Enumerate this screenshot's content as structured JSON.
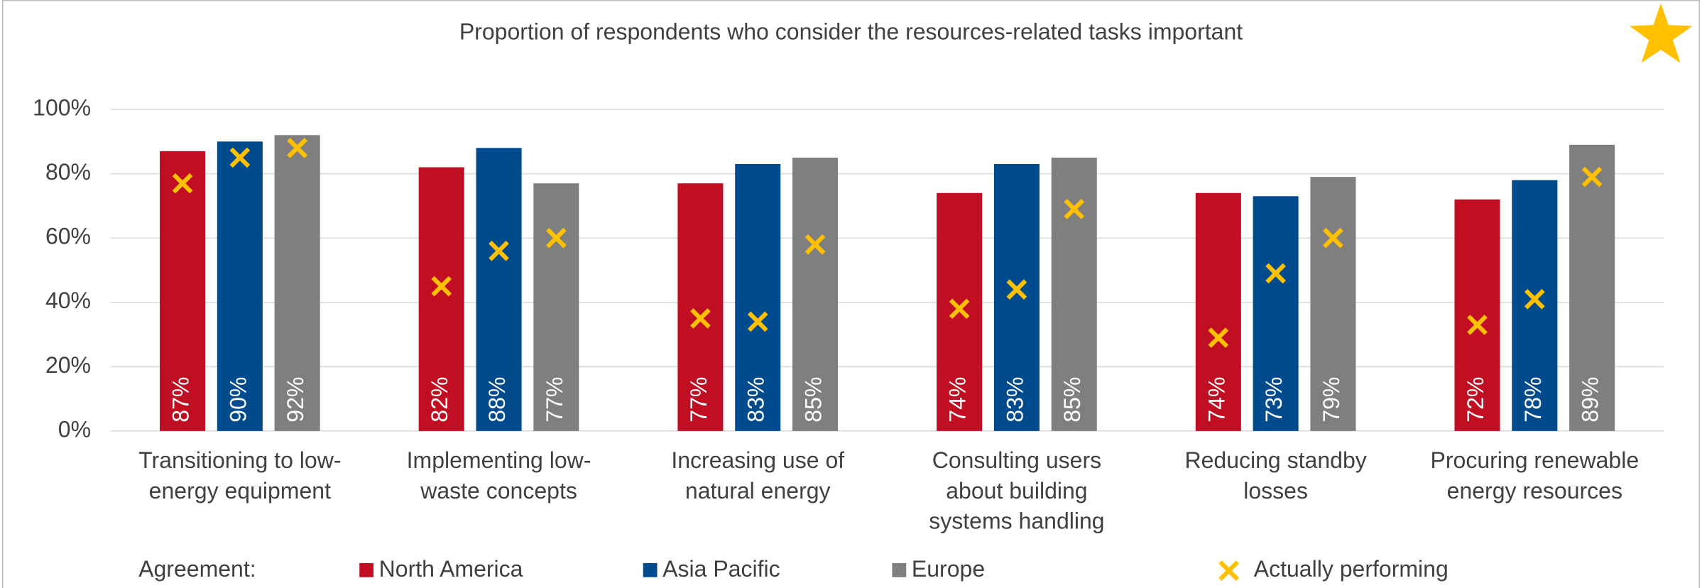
{
  "chart_data": {
    "type": "bar",
    "title": "Proportion of respondents who consider the resources-related tasks important",
    "categories": [
      [
        "Transitioning to low-",
        "energy equipment"
      ],
      [
        "Implementing low-",
        "waste concepts"
      ],
      [
        "Increasing use of",
        "natural energy"
      ],
      [
        "Consulting users",
        "about building",
        "systems handling"
      ],
      [
        "Reducing standby",
        "losses"
      ],
      [
        "Procuring renewable",
        "energy resources"
      ]
    ],
    "legend_title": "Agreement:",
    "series": [
      {
        "name": "North America",
        "color": "#c00f23",
        "values": [
          87,
          82,
          77,
          74,
          74,
          72
        ],
        "value_labels": [
          "87%",
          "82%",
          "77%",
          "74%",
          "74%",
          "72%"
        ],
        "performing": [
          77,
          45,
          35,
          38,
          29,
          33
        ]
      },
      {
        "name": "Asia Pacific",
        "color": "#004b8d",
        "values": [
          90,
          88,
          83,
          83,
          73,
          78
        ],
        "value_labels": [
          "90%",
          "88%",
          "83%",
          "83%",
          "73%",
          "78%"
        ],
        "performing": [
          85,
          56,
          34,
          44,
          49,
          41
        ]
      },
      {
        "name": "Europe",
        "color": "#7f7f7f",
        "values": [
          92,
          77,
          85,
          85,
          79,
          89
        ],
        "value_labels": [
          "92%",
          "77%",
          "85%",
          "85%",
          "79%",
          "89%"
        ],
        "performing": [
          88,
          60,
          58,
          69,
          60,
          79
        ]
      }
    ],
    "marker_series": {
      "name": "Actually performing",
      "color": "#ffc000"
    },
    "ylim": [
      0,
      100
    ],
    "yticks": [
      {
        "value": 0,
        "label": "0%"
      },
      {
        "value": 20,
        "label": "20%"
      },
      {
        "value": 40,
        "label": "40%"
      },
      {
        "value": 60,
        "label": "60%"
      },
      {
        "value": 80,
        "label": "80%"
      },
      {
        "value": 100,
        "label": "100%"
      }
    ],
    "grid": true
  }
}
